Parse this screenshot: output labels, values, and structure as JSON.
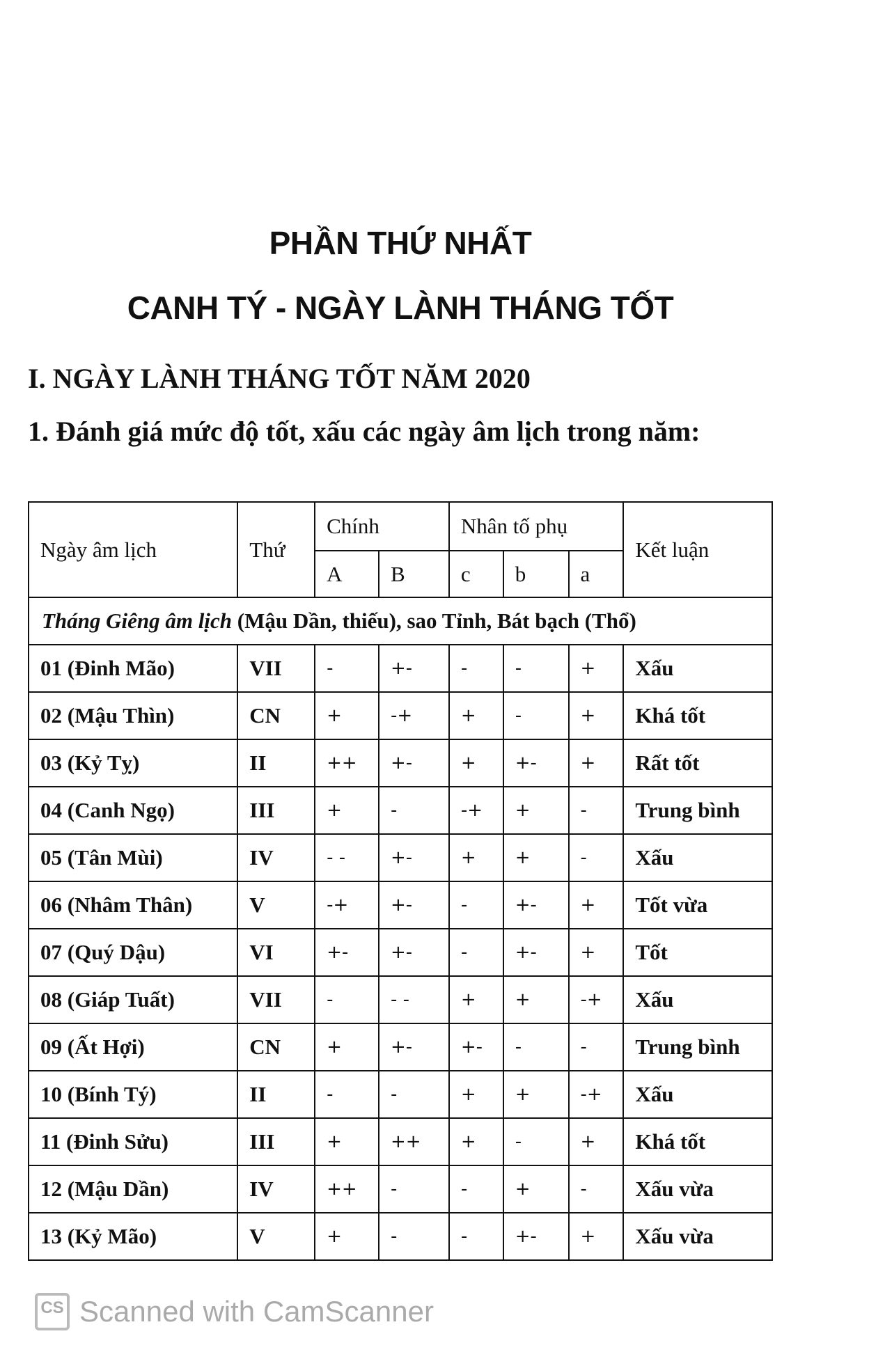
{
  "titles": {
    "part": "PHẦN THỨ NHẤT",
    "main": "CANH TÝ - NGÀY LÀNH THÁNG TỐT"
  },
  "headings": {
    "section": "I. NGÀY LÀNH THÁNG TỐT NĂM 2020",
    "subsection": "1. Đánh giá mức độ tốt, xấu các ngày âm lịch trong năm:"
  },
  "table": {
    "headers": {
      "day": "Ngày âm lịch",
      "weekday": "Thứ",
      "main": "Chính",
      "secondary": "Nhân tố phụ",
      "conclusion": "Kết luận",
      "A": "A",
      "B": "B",
      "c": "c",
      "b": "b",
      "a": "a"
    },
    "month": {
      "italic": "Tháng Giêng âm lịch",
      "rest": " (Mậu Dần, thiếu), sao Tỉnh, Bát bạch (Thổ)"
    },
    "rows": [
      [
        "01 (Đinh Mão)",
        "VII",
        "-",
        "+-",
        "-",
        "-",
        "+",
        "Xấu"
      ],
      [
        "02 (Mậu Thìn)",
        "CN",
        "+",
        "-+",
        "+",
        "-",
        "+",
        "Khá tốt"
      ],
      [
        "03 (Kỷ Tỵ)",
        "II",
        "++",
        "+-",
        "+",
        "+-",
        "+",
        "Rất tốt"
      ],
      [
        "04 (Canh Ngọ)",
        "III",
        "+",
        "-",
        "-+",
        "+",
        "-",
        "Trung bình"
      ],
      [
        "05 (Tân Mùi)",
        "IV",
        "- -",
        "+-",
        "+",
        "+",
        "-",
        "Xấu"
      ],
      [
        "06 (Nhâm Thân)",
        "V",
        "-+",
        "+-",
        "-",
        "+-",
        "+",
        "Tốt vừa"
      ],
      [
        "07 (Quý Dậu)",
        "VI",
        "+-",
        "+-",
        "-",
        "+-",
        "+",
        "Tốt"
      ],
      [
        "08 (Giáp Tuất)",
        "VII",
        "-",
        "- -",
        "+",
        "+",
        "-+",
        "Xấu"
      ],
      [
        "09 (Ất Hợi)",
        "CN",
        "+",
        "+-",
        "+-",
        "-",
        "-",
        "Trung bình"
      ],
      [
        "10 (Bính Tý)",
        "II",
        "-",
        "-",
        "+",
        "+",
        "-+",
        "Xấu"
      ],
      [
        "11 (Đinh Sửu)",
        "III",
        "+",
        "++",
        "+",
        "-",
        "+",
        "Khá tốt"
      ],
      [
        "12 (Mậu Dần)",
        "IV",
        "++",
        "-",
        "-",
        "+",
        "-",
        "Xấu vừa"
      ],
      [
        "13 (Kỷ Mão)",
        "V",
        "+",
        "-",
        "-",
        "+-",
        "+",
        "Xấu vừa"
      ]
    ]
  },
  "footer": {
    "logo": "CS",
    "text": "Scanned with CamScanner"
  }
}
